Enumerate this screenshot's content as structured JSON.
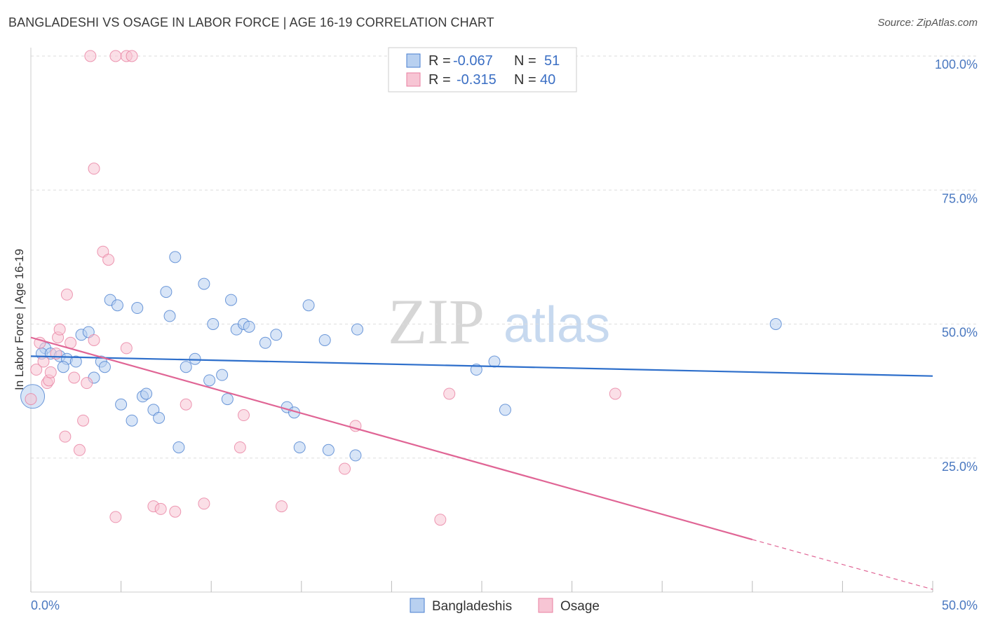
{
  "title": "BANGLADESHI VS OSAGE IN LABOR FORCE | AGE 16-19 CORRELATION CHART",
  "source": "Source: ZipAtlas.com",
  "watermark": {
    "zip": "ZIP",
    "atlas": "atlas"
  },
  "colors": {
    "blue": "#4a7fd0",
    "blue_fill": "#b8d0f0",
    "blue_line": "#2e6fcb",
    "pink": "#e87fa0",
    "pink_fill": "#f7c5d4",
    "pink_line": "#e06595",
    "grid": "#dddddd",
    "tick_label": "#4a78c0"
  },
  "legend": {
    "rows": [
      {
        "r_label": "R =",
        "r_value": "-0.067",
        "n_label": "N =",
        "n_value": "51"
      },
      {
        "r_label": "R =",
        "r_value": "-0.315",
        "n_label": "N =",
        "n_value": "40"
      }
    ]
  },
  "chart_data": {
    "type": "scatter",
    "title": "BANGLADESHI VS OSAGE IN LABOR FORCE | AGE 16-19 CORRELATION CHART",
    "xlabel": "",
    "ylabel": "In Labor Force | Age 16-19",
    "xlim": [
      0,
      50
    ],
    "ylim": [
      0,
      102
    ],
    "x_tick_labels": [
      "0.0%",
      "50.0%"
    ],
    "y_tick_labels": [
      "25.0%",
      "50.0%",
      "75.0%",
      "100.0%"
    ],
    "y_ticks": [
      25,
      50,
      75,
      100
    ],
    "grid": true,
    "legend_position": "top-center",
    "series": [
      {
        "name": "Bangladeshis",
        "color": "#4a7fd0",
        "r": -0.067,
        "n": 51,
        "trend": {
          "x": [
            0,
            50
          ],
          "y": [
            44.0,
            40.3
          ]
        },
        "points": [
          [
            0.1,
            36.5
          ],
          [
            0.8,
            45.5
          ],
          [
            0.6,
            44.5
          ],
          [
            1.1,
            44.5
          ],
          [
            1.6,
            44.0
          ],
          [
            2.0,
            43.5
          ],
          [
            1.8,
            42.0
          ],
          [
            2.5,
            43.0
          ],
          [
            2.8,
            48.0
          ],
          [
            3.2,
            48.5
          ],
          [
            3.5,
            40.0
          ],
          [
            3.9,
            43.0
          ],
          [
            4.1,
            42.0
          ],
          [
            4.4,
            54.5
          ],
          [
            4.8,
            53.5
          ],
          [
            5.0,
            35.0
          ],
          [
            5.6,
            32.0
          ],
          [
            5.9,
            53.0
          ],
          [
            6.2,
            36.5
          ],
          [
            6.4,
            37.0
          ],
          [
            6.8,
            34.0
          ],
          [
            7.1,
            32.5
          ],
          [
            7.5,
            56.0
          ],
          [
            7.7,
            51.5
          ],
          [
            8.0,
            62.5
          ],
          [
            8.2,
            27.0
          ],
          [
            8.6,
            42.0
          ],
          [
            9.1,
            43.5
          ],
          [
            9.6,
            57.5
          ],
          [
            9.9,
            39.5
          ],
          [
            10.1,
            50.0
          ],
          [
            10.6,
            40.5
          ],
          [
            10.9,
            36.0
          ],
          [
            11.1,
            54.5
          ],
          [
            11.4,
            49.0
          ],
          [
            11.8,
            50.0
          ],
          [
            12.1,
            49.5
          ],
          [
            13.0,
            46.5
          ],
          [
            13.6,
            48.0
          ],
          [
            14.2,
            34.5
          ],
          [
            14.6,
            33.5
          ],
          [
            14.9,
            27.0
          ],
          [
            15.4,
            53.5
          ],
          [
            16.3,
            47.0
          ],
          [
            16.5,
            26.5
          ],
          [
            18.0,
            25.5
          ],
          [
            18.1,
            49.0
          ],
          [
            24.7,
            41.5
          ],
          [
            25.7,
            43.0
          ],
          [
            26.3,
            34.0
          ],
          [
            41.3,
            50.0
          ]
        ]
      },
      {
        "name": "Osage",
        "color": "#e87fa0",
        "r": -0.315,
        "n": 40,
        "trend": {
          "x": [
            0,
            40
          ],
          "y": [
            47.5,
            9.8
          ]
        },
        "trend_dashed": {
          "x": [
            40,
            50
          ],
          "y": [
            9.8,
            0.5
          ]
        },
        "points": [
          [
            0.0,
            36.0
          ],
          [
            0.3,
            41.5
          ],
          [
            0.5,
            46.5
          ],
          [
            0.7,
            43.0
          ],
          [
            0.9,
            39.0
          ],
          [
            1.0,
            39.5
          ],
          [
            1.1,
            41.0
          ],
          [
            1.4,
            44.5
          ],
          [
            1.5,
            47.5
          ],
          [
            1.6,
            49.0
          ],
          [
            1.9,
            29.0
          ],
          [
            2.0,
            55.5
          ],
          [
            2.2,
            46.5
          ],
          [
            2.4,
            40.0
          ],
          [
            2.7,
            26.5
          ],
          [
            2.9,
            32.0
          ],
          [
            3.1,
            39.0
          ],
          [
            3.5,
            47.0
          ],
          [
            3.5,
            79.0
          ],
          [
            4.0,
            63.5
          ],
          [
            4.3,
            62.0
          ],
          [
            4.7,
            14.0
          ],
          [
            5.3,
            45.5
          ],
          [
            6.8,
            16.0
          ],
          [
            7.2,
            15.5
          ],
          [
            8.0,
            15.0
          ],
          [
            8.6,
            35.0
          ],
          [
            9.6,
            16.5
          ],
          [
            11.6,
            27.0
          ],
          [
            11.8,
            33.0
          ],
          [
            13.9,
            16.0
          ],
          [
            17.4,
            23.0
          ],
          [
            18.0,
            31.0
          ],
          [
            22.7,
            13.5
          ],
          [
            23.2,
            37.0
          ],
          [
            32.4,
            37.0
          ],
          [
            3.3,
            100.0
          ],
          [
            4.7,
            100.0
          ],
          [
            5.3,
            100.0
          ],
          [
            5.6,
            100.0
          ]
        ]
      }
    ]
  }
}
